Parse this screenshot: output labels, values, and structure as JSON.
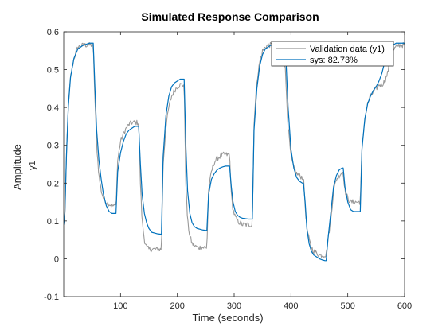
{
  "chart_data": {
    "type": "line",
    "title": "Simulated Response Comparison",
    "xlabel": "Time (seconds)",
    "ylabel": "Amplitude",
    "ylabel_sub": "y1",
    "xlim": [
      0,
      600
    ],
    "ylim": [
      -0.1,
      0.6
    ],
    "xticks": [
      "100",
      "200",
      "300",
      "400",
      "500",
      "600"
    ],
    "yticks": [
      "-0.1",
      "0",
      "0.1",
      "0.2",
      "0.3",
      "0.4",
      "0.5",
      "0.6"
    ],
    "grid": false,
    "legend_position": "top-right",
    "colors": {
      "validation": "#999999",
      "sys": "#0072BD",
      "axes": "#262626"
    },
    "series": [
      {
        "name": "Validation data (y1)",
        "color": "#999999",
        "x": [
          0,
          2,
          5,
          8,
          12,
          18,
          25,
          35,
          45,
          50,
          52,
          55,
          58,
          62,
          66,
          70,
          75,
          80,
          85,
          90,
          92,
          95,
          100,
          105,
          110,
          115,
          120,
          125,
          130,
          132,
          135,
          138,
          142,
          146,
          150,
          155,
          160,
          165,
          170,
          172,
          175,
          180,
          185,
          190,
          195,
          200,
          205,
          210,
          212,
          215,
          218,
          222,
          226,
          230,
          235,
          240,
          245,
          250,
          252,
          255,
          260,
          265,
          270,
          275,
          280,
          285,
          290,
          292,
          295,
          298,
          302,
          306,
          310,
          315,
          320,
          325,
          330,
          332,
          335,
          340,
          345,
          350,
          355,
          360,
          365,
          370,
          375,
          380,
          385,
          390,
          395,
          400,
          405,
          410,
          415,
          420,
          422,
          425,
          428,
          432,
          436,
          440,
          445,
          450,
          455,
          460,
          462,
          465,
          470,
          475,
          480,
          485,
          490,
          492,
          495,
          500,
          505,
          510,
          515,
          520,
          522,
          525,
          530,
          535,
          540,
          545,
          550,
          555,
          560,
          565,
          570,
          575,
          580,
          585,
          590,
          595,
          600
        ],
        "y": [
          0.1,
          0.1,
          0.28,
          0.4,
          0.48,
          0.53,
          0.56,
          0.565,
          0.565,
          0.565,
          0.56,
          0.42,
          0.3,
          0.22,
          0.18,
          0.16,
          0.15,
          0.145,
          0.14,
          0.14,
          0.14,
          0.26,
          0.31,
          0.33,
          0.345,
          0.355,
          0.36,
          0.36,
          0.36,
          0.36,
          0.2,
          0.1,
          0.05,
          0.03,
          0.025,
          0.025,
          0.025,
          0.025,
          0.025,
          0.025,
          0.25,
          0.35,
          0.4,
          0.43,
          0.445,
          0.455,
          0.46,
          0.46,
          0.46,
          0.2,
          0.1,
          0.06,
          0.04,
          0.035,
          0.03,
          0.03,
          0.03,
          0.03,
          0.03,
          0.18,
          0.23,
          0.255,
          0.265,
          0.27,
          0.275,
          0.275,
          0.275,
          0.275,
          0.17,
          0.13,
          0.11,
          0.1,
          0.095,
          0.09,
          0.09,
          0.09,
          0.09,
          0.09,
          0.36,
          0.47,
          0.52,
          0.55,
          0.56,
          0.565,
          0.565,
          0.565,
          0.565,
          0.565,
          0.56,
          0.5,
          0.35,
          0.27,
          0.24,
          0.225,
          0.22,
          0.215,
          0.215,
          0.14,
          0.08,
          0.05,
          0.03,
          0.02,
          0.015,
          0.01,
          0.01,
          0.01,
          0.01,
          0.05,
          0.1,
          0.18,
          0.21,
          0.22,
          0.23,
          0.23,
          0.18,
          0.16,
          0.15,
          0.15,
          0.15,
          0.15,
          0.15,
          0.29,
          0.37,
          0.41,
          0.43,
          0.44,
          0.45,
          0.46,
          0.46,
          0.47,
          0.49,
          0.53,
          0.55,
          0.56,
          0.565,
          0.565,
          0.565
        ],
        "noise": 0.007
      },
      {
        "name": "sys: 82.73%",
        "color": "#0072BD",
        "x": [
          0,
          2,
          5,
          8,
          12,
          18,
          25,
          35,
          45,
          50,
          52,
          55,
          58,
          62,
          66,
          70,
          75,
          80,
          85,
          90,
          92,
          95,
          100,
          105,
          110,
          115,
          120,
          125,
          130,
          132,
          135,
          138,
          142,
          146,
          150,
          155,
          160,
          165,
          170,
          172,
          175,
          180,
          185,
          190,
          195,
          200,
          205,
          210,
          212,
          215,
          218,
          222,
          226,
          230,
          235,
          240,
          245,
          250,
          252,
          255,
          260,
          265,
          270,
          275,
          280,
          285,
          290,
          292,
          295,
          298,
          302,
          306,
          310,
          315,
          320,
          325,
          330,
          332,
          335,
          340,
          345,
          350,
          355,
          360,
          365,
          370,
          375,
          380,
          385,
          390,
          395,
          400,
          405,
          410,
          415,
          420,
          422,
          425,
          428,
          432,
          436,
          440,
          445,
          450,
          455,
          460,
          462,
          465,
          470,
          475,
          480,
          485,
          490,
          492,
          495,
          500,
          505,
          510,
          515,
          520,
          522,
          525,
          530,
          535,
          540,
          545,
          550,
          555,
          560,
          565,
          570,
          575,
          580,
          585,
          590,
          595,
          600
        ],
        "y": [
          0.09,
          0.12,
          0.28,
          0.4,
          0.48,
          0.53,
          0.555,
          0.565,
          0.57,
          0.57,
          0.57,
          0.45,
          0.34,
          0.26,
          0.21,
          0.17,
          0.14,
          0.125,
          0.12,
          0.12,
          0.12,
          0.23,
          0.28,
          0.31,
          0.33,
          0.34,
          0.345,
          0.35,
          0.35,
          0.35,
          0.25,
          0.17,
          0.12,
          0.095,
          0.08,
          0.07,
          0.068,
          0.066,
          0.065,
          0.065,
          0.27,
          0.38,
          0.43,
          0.455,
          0.465,
          0.47,
          0.475,
          0.475,
          0.475,
          0.3,
          0.18,
          0.12,
          0.095,
          0.085,
          0.08,
          0.078,
          0.076,
          0.075,
          0.075,
          0.17,
          0.21,
          0.225,
          0.235,
          0.24,
          0.243,
          0.245,
          0.245,
          0.245,
          0.19,
          0.15,
          0.125,
          0.115,
          0.11,
          0.107,
          0.106,
          0.105,
          0.105,
          0.105,
          0.34,
          0.45,
          0.51,
          0.54,
          0.555,
          0.56,
          0.565,
          0.565,
          0.565,
          0.565,
          0.565,
          0.565,
          0.4,
          0.29,
          0.24,
          0.215,
          0.205,
          0.2,
          0.2,
          0.15,
          0.08,
          0.04,
          0.02,
          0.01,
          0.005,
          0.0,
          -0.003,
          -0.005,
          -0.005,
          0.05,
          0.12,
          0.19,
          0.22,
          0.235,
          0.24,
          0.24,
          0.19,
          0.15,
          0.13,
          0.125,
          0.125,
          0.125,
          0.125,
          0.29,
          0.37,
          0.41,
          0.43,
          0.445,
          0.455,
          0.47,
          0.49,
          0.52,
          0.54,
          0.555,
          0.565,
          0.57,
          0.57,
          0.57,
          0.57
        ]
      }
    ]
  }
}
